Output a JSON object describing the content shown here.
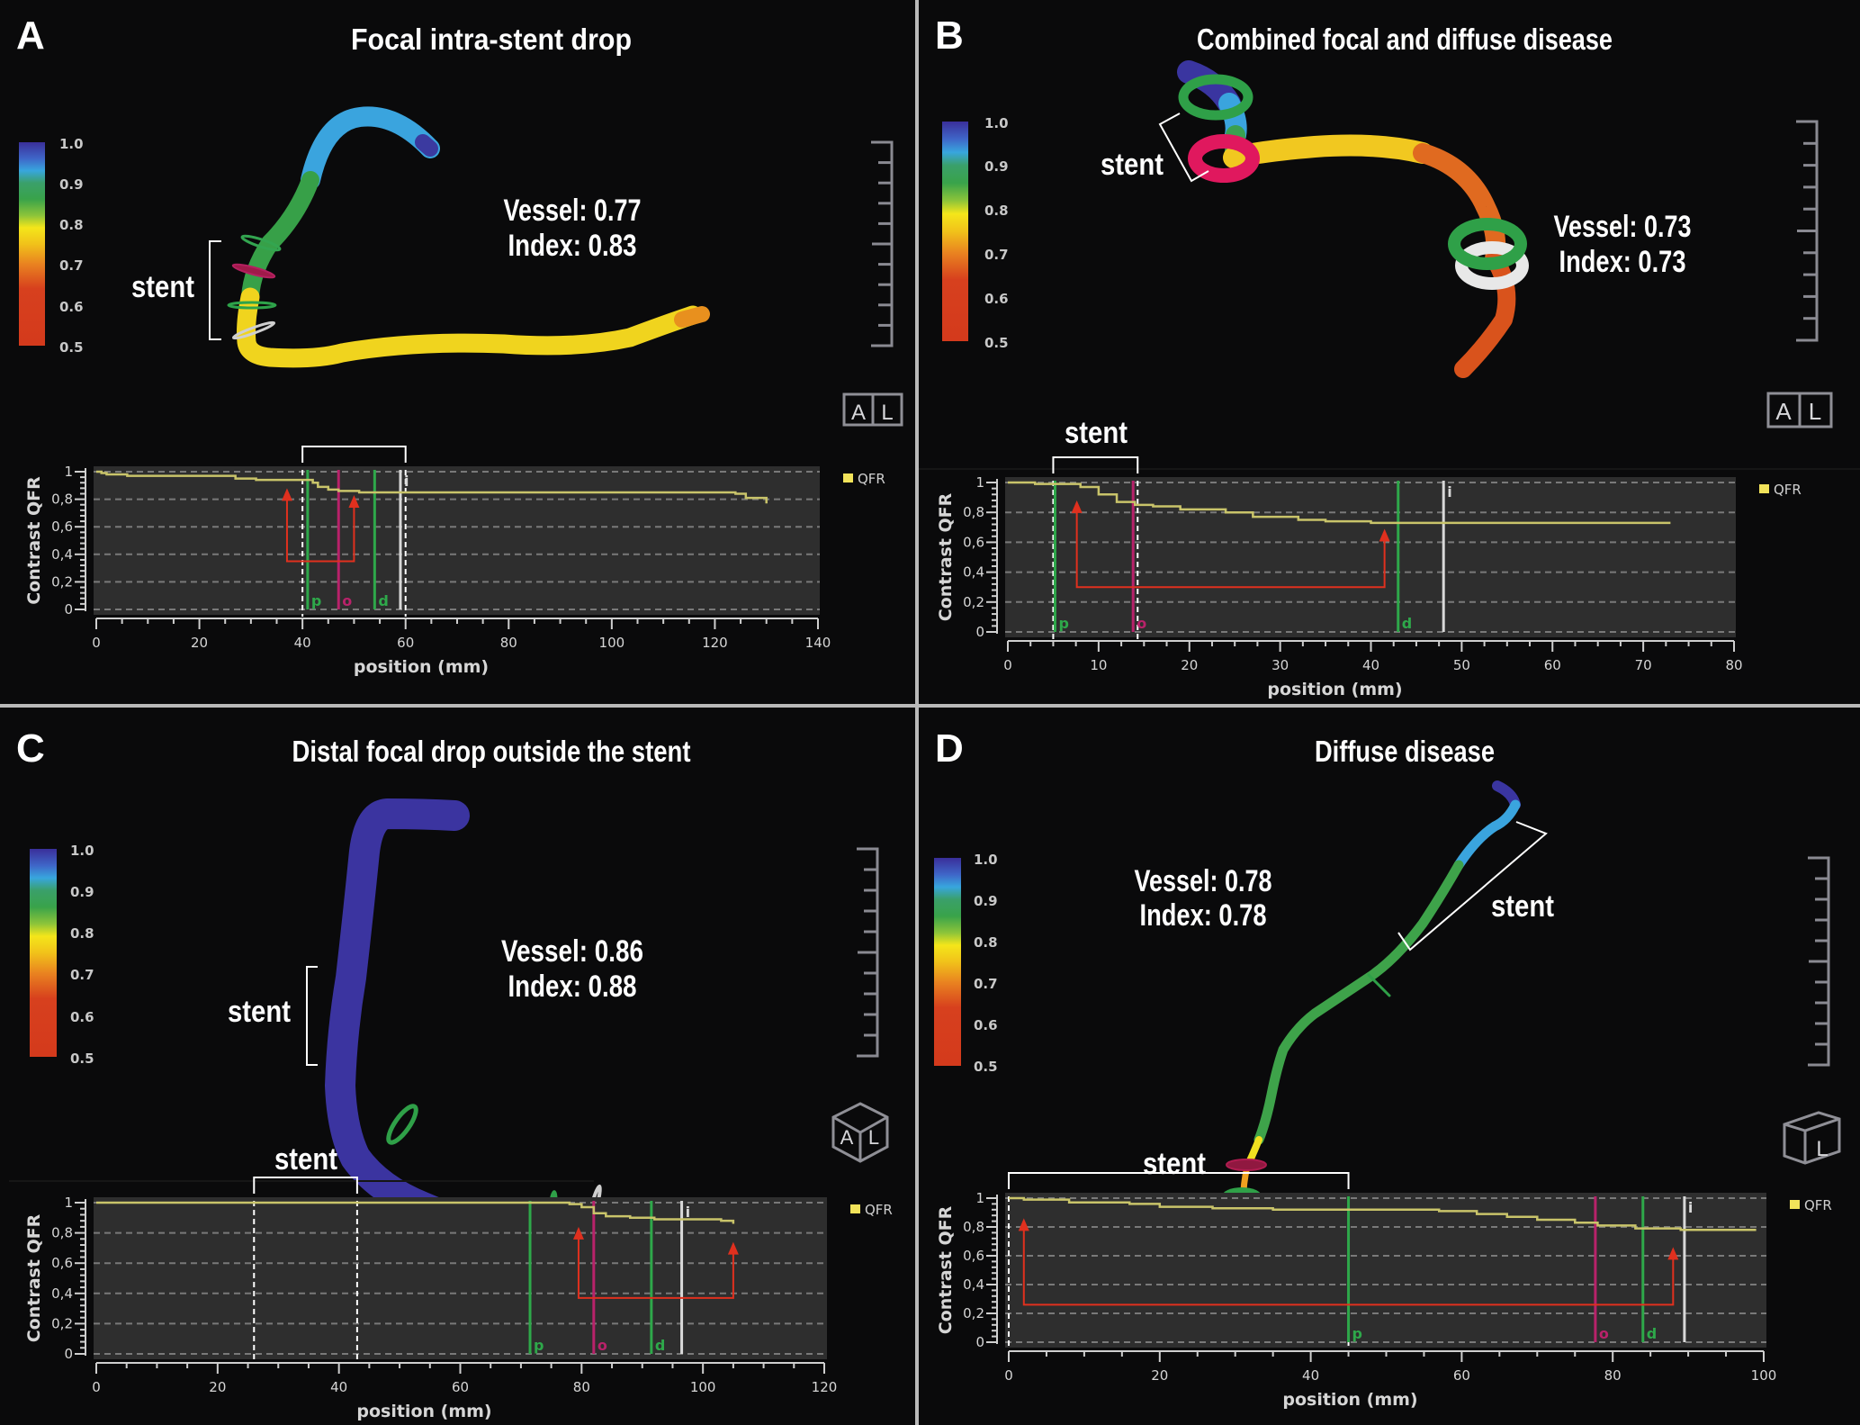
{
  "figure": {
    "panels": [
      {
        "id": "A",
        "letter": "A",
        "title": "Focal intra-stent drop",
        "vessel_label": "Vessel: 0.77",
        "index_label": "Index: 0.83",
        "vessel_qfr": 0.77,
        "index_qfr": 0.83,
        "stent_label_3d": "stent",
        "stent_label_chart": "",
        "orientation_icon": "AL",
        "colorbar": {
          "ticks": [
            "1.0",
            "0.9",
            "0.8",
            "0.7",
            "0.6",
            "0.5"
          ]
        }
      },
      {
        "id": "B",
        "letter": "B",
        "title": "Combined focal and diffuse disease",
        "vessel_label": "Vessel: 0.73",
        "index_label": "Index: 0.73",
        "vessel_qfr": 0.73,
        "index_qfr": 0.73,
        "stent_label_3d": "stent",
        "stent_label_chart": "stent",
        "orientation_icon": "AL",
        "colorbar": {
          "ticks": [
            "1.0",
            "0.9",
            "0.8",
            "0.7",
            "0.6",
            "0.5"
          ]
        }
      },
      {
        "id": "C",
        "letter": "C",
        "title": "Distal focal drop outside the stent",
        "vessel_label": "Vessel: 0.86",
        "index_label": "Index: 0.88",
        "vessel_qfr": 0.86,
        "index_qfr": 0.88,
        "stent_label_3d": "stent",
        "stent_label_chart": "stent",
        "orientation_icon": "AL-cube",
        "colorbar": {
          "ticks": [
            "1.0",
            "0.9",
            "0.8",
            "0.7",
            "0.6",
            "0.5"
          ]
        }
      },
      {
        "id": "D",
        "letter": "D",
        "title": "Diffuse disease",
        "vessel_label": "Vessel: 0.78",
        "index_label": "Index: 0.78",
        "vessel_qfr": 0.78,
        "index_qfr": 0.78,
        "stent_label_3d": "stent",
        "stent_label_chart": "stent",
        "orientation_icon": "L-cube",
        "colorbar": {
          "ticks": [
            "1.0",
            "0.9",
            "0.8",
            "0.7",
            "0.6",
            "0.5"
          ]
        }
      }
    ],
    "colors": {
      "qfr_line": "#c9c46a",
      "legend_swatch": "#f2e35a",
      "marker_green": "#2ea84a",
      "marker_magenta": "#b8226a",
      "marker_white": "#d8d8d8",
      "arrow_red": "#e0301e",
      "plot_bg": "#2e2e2e",
      "separator": "#b9b9b9"
    }
  },
  "chart_data": [
    {
      "type": "line",
      "panel": "A",
      "title": "",
      "xlabel": "position (mm)",
      "ylabel": "Contrast QFR",
      "xlim": [
        0,
        140
      ],
      "ylim": [
        0,
        1
      ],
      "xticks": [
        "0",
        "20",
        "40",
        "60",
        "80",
        "100",
        "120",
        "140"
      ],
      "yticks": [
        "0",
        "0,2",
        "0,4",
        "0,6",
        "0,8",
        "1"
      ],
      "grid": true,
      "legend": {
        "position": "top-right",
        "entries": [
          "QFR"
        ]
      },
      "series": [
        {
          "name": "QFR",
          "x": [
            0,
            1,
            2,
            6,
            25,
            27,
            31,
            41,
            42,
            43,
            45,
            47,
            51,
            120,
            124,
            126,
            130
          ],
          "y": [
            1.0,
            0.99,
            0.98,
            0.97,
            0.97,
            0.95,
            0.94,
            0.94,
            0.92,
            0.89,
            0.87,
            0.86,
            0.85,
            0.85,
            0.84,
            0.81,
            0.77
          ]
        }
      ],
      "markers": [
        {
          "label": "p",
          "x": 41,
          "color": "green"
        },
        {
          "label": "o",
          "x": 47,
          "color": "magenta"
        },
        {
          "label": "d",
          "x": 54,
          "color": "green"
        },
        {
          "label": "i",
          "x": 59,
          "color": "white"
        }
      ],
      "stent_range": [
        40,
        60
      ],
      "arrows": {
        "baseline_y": 0.35,
        "from_x": 37,
        "to_x": 50,
        "from_top_y": 0.88,
        "to_top_y": 0.83
      }
    },
    {
      "type": "line",
      "panel": "B",
      "title": "",
      "xlabel": "position (mm)",
      "ylabel": "Contrast QFR",
      "xlim": [
        0,
        80
      ],
      "ylim": [
        0,
        1
      ],
      "xticks": [
        "0",
        "10",
        "20",
        "30",
        "40",
        "50",
        "60",
        "70",
        "80"
      ],
      "yticks": [
        "0",
        "0,2",
        "0,4",
        "0,6",
        "0,8",
        "1"
      ],
      "grid": true,
      "legend": {
        "position": "top-right",
        "entries": [
          "QFR"
        ]
      },
      "series": [
        {
          "name": "QFR",
          "x": [
            0,
            3,
            7,
            8,
            10,
            12,
            14,
            16,
            19,
            24,
            27,
            32,
            35,
            40,
            73
          ],
          "y": [
            1.0,
            0.99,
            0.99,
            0.97,
            0.92,
            0.87,
            0.85,
            0.84,
            0.82,
            0.8,
            0.77,
            0.75,
            0.74,
            0.73,
            0.73
          ]
        }
      ],
      "markers": [
        {
          "label": "p",
          "x": 5.2,
          "color": "green"
        },
        {
          "label": "o",
          "x": 13.8,
          "color": "magenta"
        },
        {
          "label": "d",
          "x": 43,
          "color": "green"
        },
        {
          "label": "i",
          "x": 48,
          "color": "white"
        }
      ],
      "stent_range": [
        5,
        14.3
      ],
      "arrows": {
        "baseline_y": 0.3,
        "from_x": 7.6,
        "to_x": 41.5,
        "from_top_y": 0.88,
        "to_top_y": 0.69
      }
    },
    {
      "type": "line",
      "panel": "C",
      "title": "",
      "xlabel": "position (mm)",
      "ylabel": "Contrast QFR",
      "xlim": [
        0,
        120
      ],
      "ylim": [
        0,
        1
      ],
      "xticks": [
        "0",
        "20",
        "40",
        "60",
        "80",
        "100",
        "120"
      ],
      "yticks": [
        "0",
        "0,2",
        "0,4",
        "0,6",
        "0,8",
        "1"
      ],
      "grid": true,
      "legend": {
        "position": "top-right",
        "entries": [
          "QFR"
        ]
      },
      "series": [
        {
          "name": "QFR",
          "x": [
            0,
            75,
            78,
            80,
            82,
            84,
            88,
            92,
            100,
            103,
            105
          ],
          "y": [
            1.0,
            1.0,
            0.99,
            0.97,
            0.93,
            0.91,
            0.9,
            0.89,
            0.89,
            0.88,
            0.86
          ]
        }
      ],
      "markers": [
        {
          "label": "p",
          "x": 71.5,
          "color": "green"
        },
        {
          "label": "o",
          "x": 82,
          "color": "magenta"
        },
        {
          "label": "d",
          "x": 91.5,
          "color": "green"
        },
        {
          "label": "i",
          "x": 96.5,
          "color": "white"
        }
      ],
      "stent_range": [
        26,
        43
      ],
      "arrows": {
        "baseline_y": 0.37,
        "from_x": 79.5,
        "to_x": 105,
        "from_top_y": 0.84,
        "to_top_y": 0.74
      }
    },
    {
      "type": "line",
      "panel": "D",
      "title": "",
      "xlabel": "position (mm)",
      "ylabel": "Contrast QFR",
      "xlim": [
        0,
        100
      ],
      "ylim": [
        0,
        1
      ],
      "xticks": [
        "0",
        "20",
        "40",
        "60",
        "80",
        "100"
      ],
      "yticks": [
        "0",
        "0,2",
        "0,4",
        "0,6",
        "0,8",
        "1"
      ],
      "grid": true,
      "legend": {
        "position": "top-right",
        "entries": [
          "QFR"
        ]
      },
      "series": [
        {
          "name": "QFR",
          "x": [
            0,
            2,
            8,
            16,
            20,
            27,
            35,
            54,
            57,
            62,
            66,
            70,
            75,
            78,
            83,
            89,
            99
          ],
          "y": [
            1.0,
            0.99,
            0.97,
            0.96,
            0.94,
            0.93,
            0.92,
            0.92,
            0.91,
            0.89,
            0.87,
            0.85,
            0.83,
            0.81,
            0.79,
            0.78,
            0.78
          ]
        }
      ],
      "markers": [
        {
          "label": "p",
          "x": 45,
          "color": "green"
        },
        {
          "label": "o",
          "x": 77.7,
          "color": "magenta"
        },
        {
          "label": "d",
          "x": 84,
          "color": "green"
        },
        {
          "label": "i",
          "x": 89.5,
          "color": "white"
        }
      ],
      "stent_range": [
        0,
        45
      ],
      "arrows": {
        "baseline_y": 0.26,
        "from_x": 2,
        "to_x": 88,
        "from_top_y": 0.86,
        "to_top_y": 0.66
      }
    }
  ]
}
